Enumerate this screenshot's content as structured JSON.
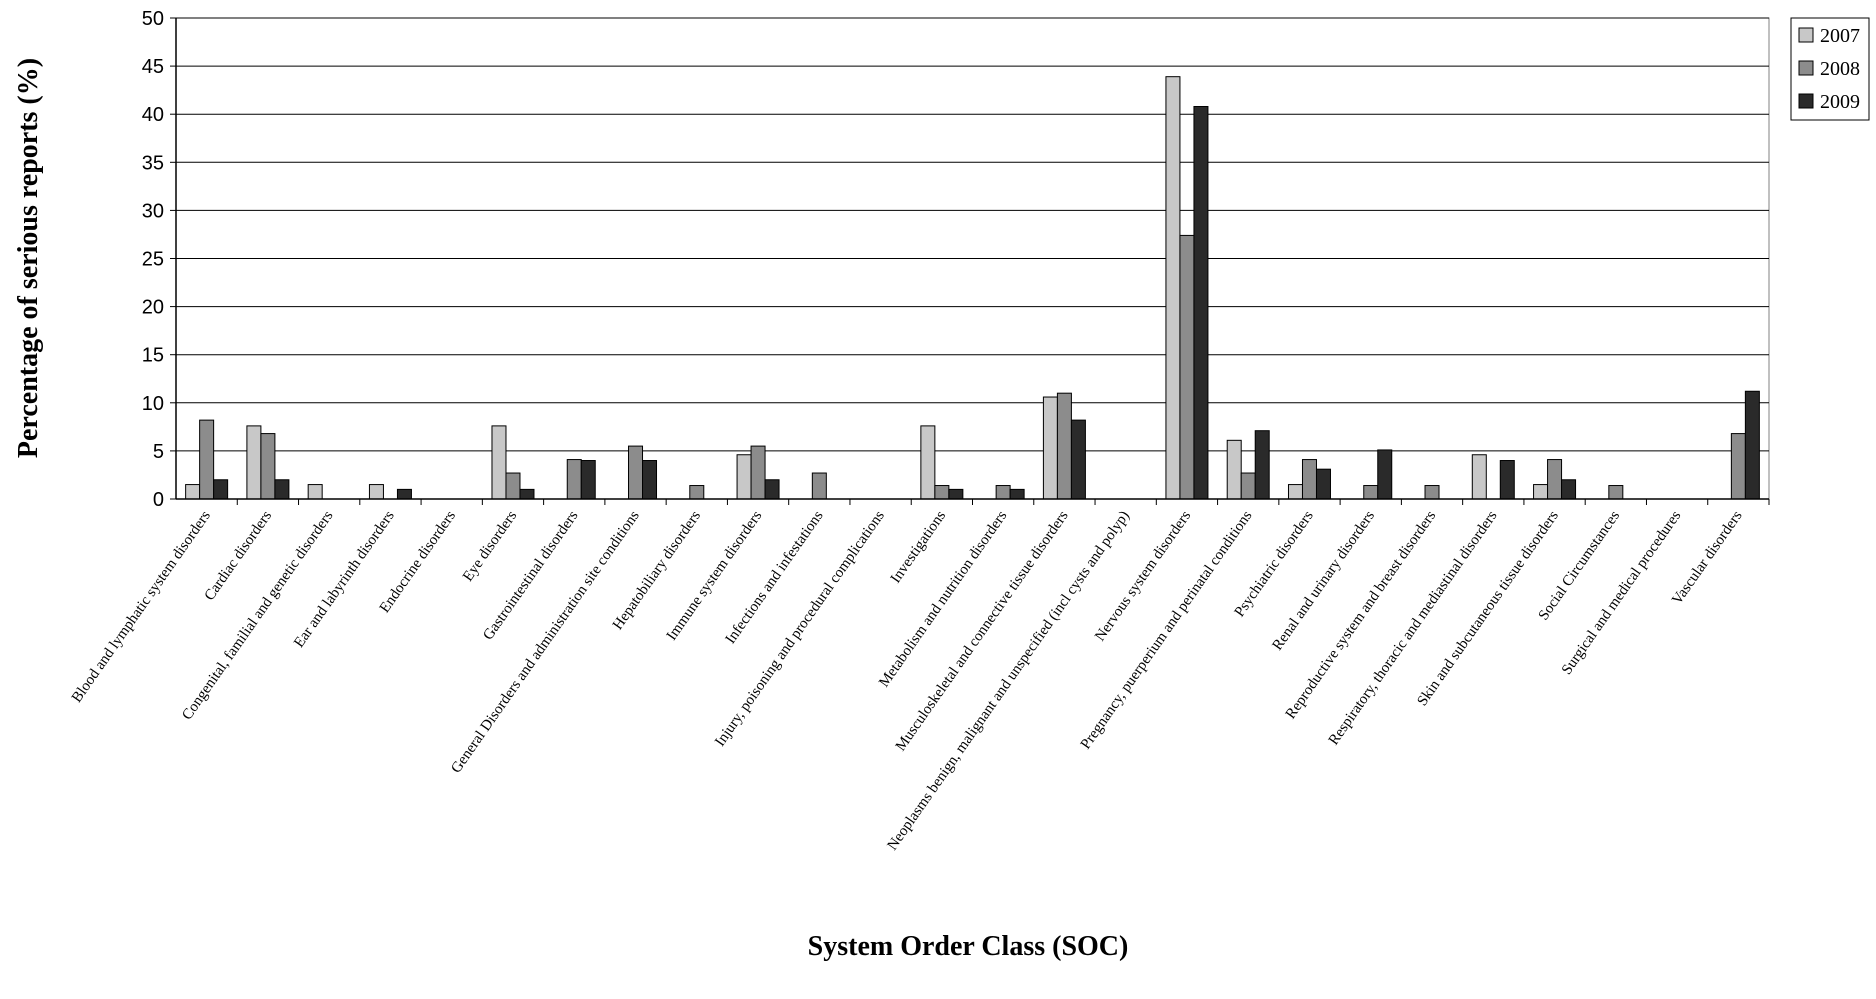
{
  "chart_data": {
    "type": "bar",
    "ylabel": "Percentage of serious reports (%)",
    "xlabel": "System Order Class (SOC)",
    "ylim": [
      0,
      50
    ],
    "yticks": [
      0,
      5,
      10,
      15,
      20,
      25,
      30,
      35,
      40,
      45,
      50
    ],
    "grid": true,
    "legend_position": "top-right",
    "categories": [
      "Blood and lymphatic system disorders",
      "Cardiac disorders",
      "Congenital, familial and genetic disorders",
      "Ear and labyrinth disorders",
      "Endocrine disorders",
      "Eye disorders",
      "Gastrointestinal disorders",
      "General Disorders and administration site conditions",
      "Hepatobiliary disorders",
      "Immune system disorders",
      "Infections and infestations",
      "Injury, poisoning and procedural complications",
      "Investigations",
      "Metabolism and nutrition disorders",
      "Musculoskeletal and connective tissue disorders",
      "Neoplasms benign, malignant and unspecified (incl cysts and polyp)",
      "Nervous system disorders",
      "Pregnancy, puerperium and perinatal conditions",
      "Psychiatric disorders",
      "Renal and urinary disorders",
      "Reproductive system and breast disorders",
      "Respiratory, thoracic and mediastinal disorders",
      "Skin and subcutaneous tissue disorders",
      "Social Circumstances",
      "Surgical and medical procedures",
      "Vascular disorders"
    ],
    "series": [
      {
        "name": "2007",
        "color": "#c8c8c8",
        "values": [
          1.5,
          7.6,
          1.5,
          1.5,
          0,
          7.6,
          0,
          0,
          0,
          4.6,
          0,
          0,
          7.6,
          0,
          10.6,
          0,
          43.9,
          6.1,
          1.5,
          0,
          0,
          4.6,
          1.5,
          0,
          0,
          0
        ]
      },
      {
        "name": "2008",
        "color": "#8c8c8c",
        "values": [
          8.2,
          6.8,
          0,
          0,
          0,
          2.7,
          4.1,
          5.5,
          1.4,
          5.5,
          2.7,
          0,
          1.4,
          1.4,
          11.0,
          0,
          27.4,
          2.7,
          4.1,
          1.4,
          1.4,
          0,
          4.1,
          1.4,
          0,
          6.8
        ]
      },
      {
        "name": "2009",
        "color": "#2a2a2a",
        "values": [
          2.0,
          2.0,
          0,
          1.0,
          0,
          1.0,
          4.0,
          4.0,
          0,
          2.0,
          0,
          0,
          1.0,
          1.0,
          8.2,
          0,
          40.8,
          7.1,
          3.1,
          5.1,
          0,
          4.0,
          2.0,
          0,
          0,
          11.2
        ]
      }
    ]
  }
}
